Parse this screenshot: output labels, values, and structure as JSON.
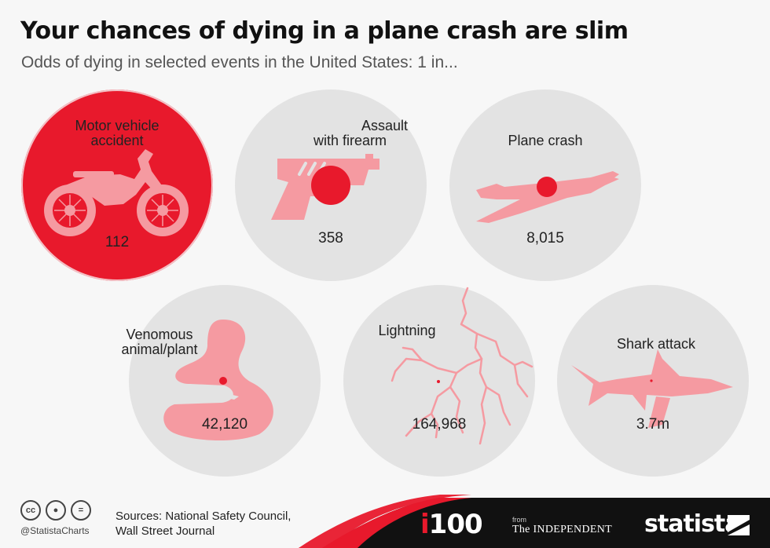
{
  "header": {
    "title": "Your chances of dying in a plane crash are slim",
    "subtitle": "Odds of dying in selected events in the United States: 1 in..."
  },
  "chart_data": {
    "type": "bubble",
    "title": "Your chances of dying in a plane crash are slim",
    "subtitle": "Odds of dying in selected events in the United States: 1 in...",
    "categories": [
      "Motor vehicle accident",
      "Assault with firearm",
      "Plane crash",
      "Venomous animal/plant",
      "Lightning",
      "Shark attack"
    ],
    "values": [
      112,
      358,
      8015,
      42120,
      164968,
      3700000
    ],
    "value_labels": [
      "112",
      "358",
      "8,015",
      "42,120",
      "164,968",
      "3.7m"
    ],
    "label_lines": [
      [
        "Motor vehicle",
        "accident"
      ],
      [
        "Assault",
        "with firearm"
      ],
      [
        "Plane crash"
      ],
      [
        "Venomous",
        "animal/plant"
      ],
      [
        "Lightning"
      ],
      [
        "Shark attack"
      ]
    ],
    "icons": [
      "motorcycle-icon",
      "handgun-icon",
      "airplane-icon",
      "cobra-icon",
      "lightning-icon",
      "shark-icon"
    ],
    "highlight_index": 0
  },
  "footer": {
    "sources_line1": "Sources: National Safety Council,",
    "sources_line2": "Wall Street Journal",
    "handle": "@StatistaCharts",
    "i100_i": "i",
    "i100_num": "100",
    "from": "from",
    "independent": "The INDEPENDENT",
    "statista": "statista"
  },
  "colors": {
    "accent": "#e8192c",
    "pink": "#f59aa1",
    "bubble": "#e3e3e3",
    "footer": "#111111"
  }
}
